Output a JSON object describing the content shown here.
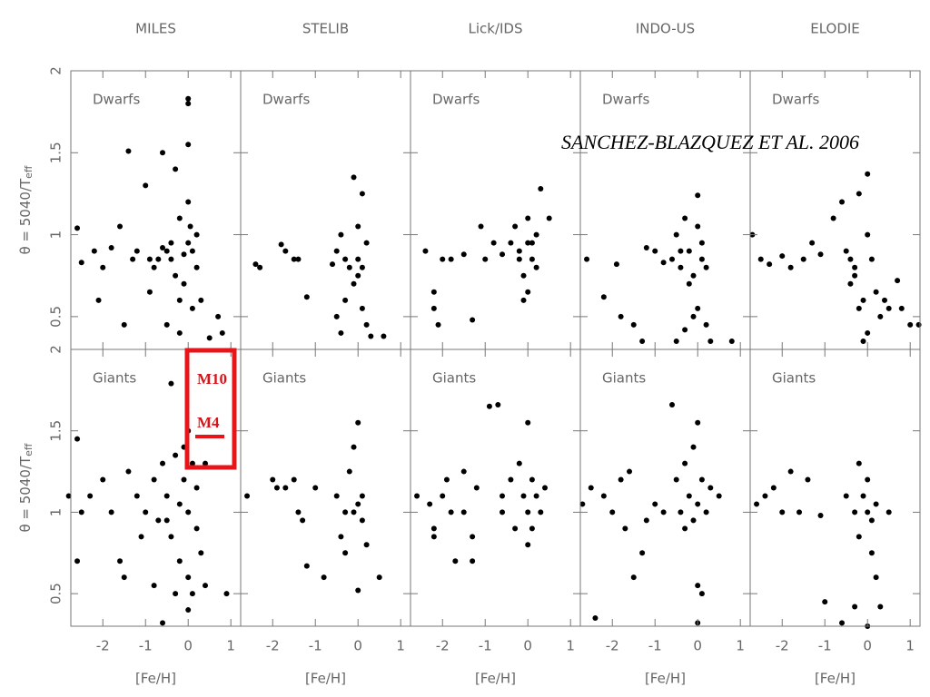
{
  "chart_data": [
    {
      "type": "scatter",
      "title": "MILES",
      "label": "Dwarfs",
      "ylabel": "θ = 5040/T",
      "ylabel_subscript": "eff",
      "color": "#000000",
      "xlim": [
        -2.75,
        1.23
      ],
      "ylim": [
        0.3,
        2.0
      ],
      "yticks": [
        0.5,
        1,
        1.5,
        2
      ],
      "x": [
        -2.6,
        -2.5,
        -2.2,
        -2,
        -1.8,
        -1.6,
        -1.4,
        -1.3,
        -1.2,
        -1.0,
        -0.9,
        -0.8,
        -0.6,
        -0.5,
        -0.4,
        -0.3,
        -0.2,
        -0.1,
        0,
        0,
        0,
        0,
        0,
        0.1,
        0.2,
        0.3,
        -0.2,
        -0.5,
        0.5,
        -1.5,
        -2.1,
        0.7,
        0.8,
        -0.7,
        -0.3,
        0.2,
        -0.4,
        -0.1,
        0.05,
        -0.6,
        -0.9,
        -0.2,
        0.1
      ],
      "y": [
        1.04,
        0.83,
        0.9,
        0.8,
        0.92,
        1.05,
        1.51,
        0.85,
        0.9,
        1.3,
        0.65,
        0.8,
        1.5,
        0.9,
        0.85,
        1.4,
        1.1,
        0.7,
        1.83,
        1.8,
        1.55,
        1.2,
        0.95,
        0.9,
        0.8,
        0.6,
        0.4,
        0.45,
        0.37,
        0.45,
        0.6,
        0.5,
        0.4,
        0.85,
        0.75,
        1.0,
        0.95,
        0.88,
        1.05,
        0.92,
        0.85,
        0.6,
        0.55
      ]
    },
    {
      "type": "scatter",
      "title": "STELIB",
      "label": "Dwarfs",
      "color": "#000000",
      "xlim": [
        -2.75,
        1.23
      ],
      "ylim": [
        0.3,
        2.0
      ],
      "x": [
        -2.4,
        -2.3,
        -1.8,
        -1.7,
        -1.5,
        -1.4,
        -1.2,
        -0.5,
        -0.4,
        -0.3,
        -0.2,
        -0.1,
        0,
        0.1,
        0.2,
        0,
        -0.1,
        -0.5,
        -0.4,
        0.2,
        0.1,
        0.3,
        0.6,
        -0.3,
        0,
        0.1,
        -0.6
      ],
      "y": [
        0.82,
        0.8,
        0.94,
        0.9,
        0.85,
        0.85,
        0.62,
        0.9,
        1.0,
        0.85,
        0.8,
        1.35,
        1.05,
        1.25,
        0.95,
        0.75,
        0.7,
        0.5,
        0.4,
        0.45,
        0.55,
        0.38,
        0.38,
        0.6,
        0.85,
        0.8,
        0.82
      ]
    },
    {
      "type": "scatter",
      "title": "Lick/IDS",
      "label": "Dwarfs",
      "color": "#000000",
      "xlim": [
        -2.75,
        1.23
      ],
      "ylim": [
        0.3,
        2.0
      ],
      "x": [
        -2.4,
        -2.2,
        -2.2,
        -2.1,
        -2,
        -1.8,
        -1.5,
        -1.3,
        -1.1,
        -1,
        -0.8,
        -0.6,
        -0.4,
        -0.3,
        -0.2,
        0,
        0,
        0.1,
        -0.1,
        0.2,
        0,
        0.3,
        0.5,
        -0.2,
        0.1,
        0.2,
        -0.1
      ],
      "y": [
        0.9,
        0.65,
        0.55,
        0.45,
        0.85,
        0.85,
        0.88,
        0.48,
        1.05,
        0.85,
        0.95,
        0.88,
        0.95,
        1.05,
        0.9,
        1.1,
        0.95,
        0.85,
        0.75,
        0.8,
        0.65,
        1.28,
        1.1,
        0.85,
        0.95,
        1.0,
        0.6
      ]
    },
    {
      "type": "scatter",
      "title": "INDO-US",
      "label": "Dwarfs",
      "color": "#000000",
      "xlim": [
        -2.75,
        1.23
      ],
      "ylim": [
        0.3,
        2.0
      ],
      "x": [
        -2.6,
        -2.2,
        -1.9,
        -1.8,
        -1.5,
        -1.2,
        -1.0,
        -0.8,
        -0.6,
        -0.5,
        -0.4,
        -0.3,
        -0.2,
        0,
        0,
        0.1,
        0.2,
        -0.1,
        0,
        -0.1,
        0.2,
        -0.5,
        -0.3,
        0.3,
        -1.3,
        0.8,
        -0.2,
        0.1,
        -0.4
      ],
      "y": [
        0.85,
        0.62,
        0.82,
        0.5,
        0.45,
        0.92,
        0.9,
        0.83,
        0.85,
        1.0,
        0.8,
        1.1,
        0.9,
        1.24,
        1.05,
        0.95,
        0.8,
        0.75,
        0.55,
        0.5,
        0.45,
        0.35,
        0.42,
        0.35,
        0.35,
        0.35,
        0.7,
        0.85,
        0.9
      ]
    },
    {
      "type": "scatter",
      "title": "ELODIE",
      "label": "Dwarfs",
      "color": "#000000",
      "xlim": [
        -2.75,
        1.23
      ],
      "ylim": [
        0.3,
        2.0
      ],
      "x": [
        -2.7,
        -2.5,
        -2.3,
        -2.0,
        -1.8,
        -1.5,
        -1.3,
        -1.1,
        -0.8,
        -0.6,
        -0.5,
        -0.4,
        -0.3,
        -0.2,
        -0.1,
        0,
        0,
        0.1,
        0.2,
        -0.2,
        0.3,
        0.5,
        0.8,
        1.0,
        1.2,
        -0.1,
        0,
        0.4,
        0.7,
        -0.4,
        -0.3
      ],
      "y": [
        1.0,
        0.85,
        0.82,
        0.87,
        0.8,
        0.85,
        0.95,
        0.88,
        1.1,
        1.2,
        0.9,
        0.7,
        0.8,
        1.25,
        0.6,
        1.37,
        1.0,
        0.85,
        0.65,
        0.55,
        0.5,
        0.55,
        0.55,
        0.45,
        0.45,
        0.35,
        0.4,
        0.6,
        0.72,
        0.85,
        0.75
      ]
    },
    {
      "type": "scatter",
      "label": "Giants",
      "xlabel": "[Fe/H]",
      "ylabel": "θ = 5040/T",
      "ylabel_subscript": "eff",
      "color": "#000000",
      "xlim": [
        -2.75,
        1.23
      ],
      "ylim": [
        0.3,
        2.0
      ],
      "xticks": [
        -2,
        -1,
        0,
        1
      ],
      "yticks": [
        0.5,
        1,
        1.5,
        2
      ],
      "x": [
        -2.8,
        -2.6,
        -2.5,
        -2.6,
        -2.3,
        -2.0,
        -1.8,
        -1.6,
        -1.5,
        -1.4,
        -1.2,
        -1.1,
        -1,
        -0.8,
        -0.7,
        -0.6,
        -0.5,
        -0.4,
        -0.4,
        -0.3,
        -0.2,
        -0.1,
        0,
        0,
        0,
        0,
        0.1,
        0.2,
        -0.2,
        -0.3,
        -0.6,
        0.4,
        0.4,
        0.2,
        -0.5,
        -0.1,
        0.1,
        0.9,
        -0.8,
        0.3
      ],
      "y": [
        1.1,
        1.45,
        1.0,
        0.7,
        1.1,
        1.2,
        1.0,
        0.7,
        0.6,
        1.25,
        1.1,
        0.85,
        1.0,
        1.2,
        0.95,
        1.3,
        1.1,
        0.85,
        1.79,
        1.35,
        1.05,
        1.2,
        1.5,
        1.0,
        0.6,
        0.4,
        1.3,
        0.9,
        0.7,
        0.5,
        0.32,
        1.3,
        0.55,
        1.15,
        0.95,
        1.4,
        0.5,
        0.5,
        0.55,
        0.75
      ]
    },
    {
      "type": "scatter",
      "label": "Giants",
      "xlabel": "[Fe/H]",
      "color": "#000000",
      "xlim": [
        -2.75,
        1.23
      ],
      "ylim": [
        0.3,
        2.0
      ],
      "xticks": [
        -2,
        -1,
        0,
        1
      ],
      "x": [
        -2.6,
        -2.0,
        -1.9,
        -1.7,
        -1.5,
        -1.4,
        -1.3,
        -1.2,
        -1.0,
        -0.8,
        -0.5,
        -0.4,
        -0.3,
        -0.2,
        -0.1,
        0,
        0,
        0,
        0.1,
        0.1,
        -0.3,
        0.5,
        -0.1,
        0.2
      ],
      "y": [
        1.1,
        1.2,
        1.15,
        1.15,
        1.2,
        1.0,
        0.95,
        0.67,
        1.15,
        0.6,
        1.1,
        0.85,
        0.75,
        1.25,
        1.4,
        1.55,
        1.05,
        0.52,
        0.95,
        1.1,
        1.0,
        0.6,
        1.0,
        0.8
      ]
    },
    {
      "type": "scatter",
      "label": "Giants",
      "xlabel": "[Fe/H]",
      "color": "#000000",
      "xlim": [
        -2.75,
        1.23
      ],
      "ylim": [
        0.3,
        2.0
      ],
      "xticks": [
        -2,
        -1,
        0,
        1
      ],
      "x": [
        -2.6,
        -2.3,
        -2.2,
        -2.2,
        -2.0,
        -1.9,
        -1.8,
        -1.7,
        -1.5,
        -1.5,
        -1.3,
        -1.3,
        -1.2,
        -0.9,
        -0.7,
        -0.6,
        -0.6,
        -0.4,
        -0.2,
        -0.1,
        0,
        0,
        0,
        0.1,
        0.2,
        0.3,
        0.4,
        -0.3,
        0.1
      ],
      "y": [
        1.1,
        1.05,
        0.85,
        0.9,
        1.1,
        1.2,
        1.0,
        0.7,
        1.25,
        1.0,
        0.85,
        0.7,
        1.15,
        1.65,
        1.66,
        1.1,
        1.0,
        1.2,
        1.3,
        1.1,
        1.55,
        1.0,
        0.8,
        1.2,
        1.1,
        1.0,
        1.15,
        0.9,
        0.9
      ]
    },
    {
      "type": "scatter",
      "label": "Giants",
      "xlabel": "[Fe/H]",
      "color": "#000000",
      "xlim": [
        -2.75,
        1.23
      ],
      "ylim": [
        0.3,
        2.0
      ],
      "xticks": [
        -2,
        -1,
        0,
        1
      ],
      "x": [
        -2.7,
        -2.5,
        -2.4,
        -2.2,
        -2.0,
        -1.8,
        -1.7,
        -1.6,
        -1.5,
        -1.3,
        -1.2,
        -1.0,
        -0.8,
        -0.6,
        -0.5,
        -0.4,
        -0.3,
        -0.2,
        -0.1,
        0,
        0,
        0,
        0.1,
        0.2,
        0.1,
        0.3,
        0,
        -0.3,
        0.5,
        -0.1
      ],
      "y": [
        1.05,
        1.15,
        0.35,
        1.1,
        1.0,
        1.2,
        0.9,
        1.25,
        0.6,
        0.75,
        0.95,
        1.05,
        1.0,
        1.66,
        1.2,
        1.0,
        1.3,
        1.1,
        1.4,
        1.55,
        1.05,
        0.55,
        1.2,
        1.0,
        0.5,
        1.15,
        0.32,
        0.9,
        1.1,
        0.95
      ]
    },
    {
      "type": "scatter",
      "label": "Giants",
      "xlabel": "[Fe/H]",
      "color": "#000000",
      "xlim": [
        -2.75,
        1.23
      ],
      "ylim": [
        0.3,
        2.0
      ],
      "xticks": [
        -2,
        -1,
        0,
        1
      ],
      "x": [
        -2.6,
        -2.4,
        -2.2,
        -2.0,
        -1.8,
        -1.6,
        -1.4,
        -1.1,
        -1.0,
        -0.6,
        -0.5,
        -0.3,
        -0.3,
        -0.2,
        -0.1,
        0,
        0,
        0.1,
        0.1,
        0.2,
        0.3,
        0.5,
        0,
        -0.2,
        0.2
      ],
      "y": [
        1.05,
        1.1,
        1.15,
        1.0,
        1.25,
        1.0,
        1.2,
        0.98,
        0.45,
        0.32,
        1.1,
        1.0,
        0.42,
        1.3,
        1.1,
        1.2,
        1.0,
        0.95,
        0.75,
        0.6,
        0.42,
        1.0,
        0.3,
        0.85,
        1.05
      ]
    }
  ],
  "credit": "SANCHEZ-BLAZQUEZ ET AL. 2006",
  "highlight": {
    "labels": [
      "M10",
      "M4"
    ]
  }
}
